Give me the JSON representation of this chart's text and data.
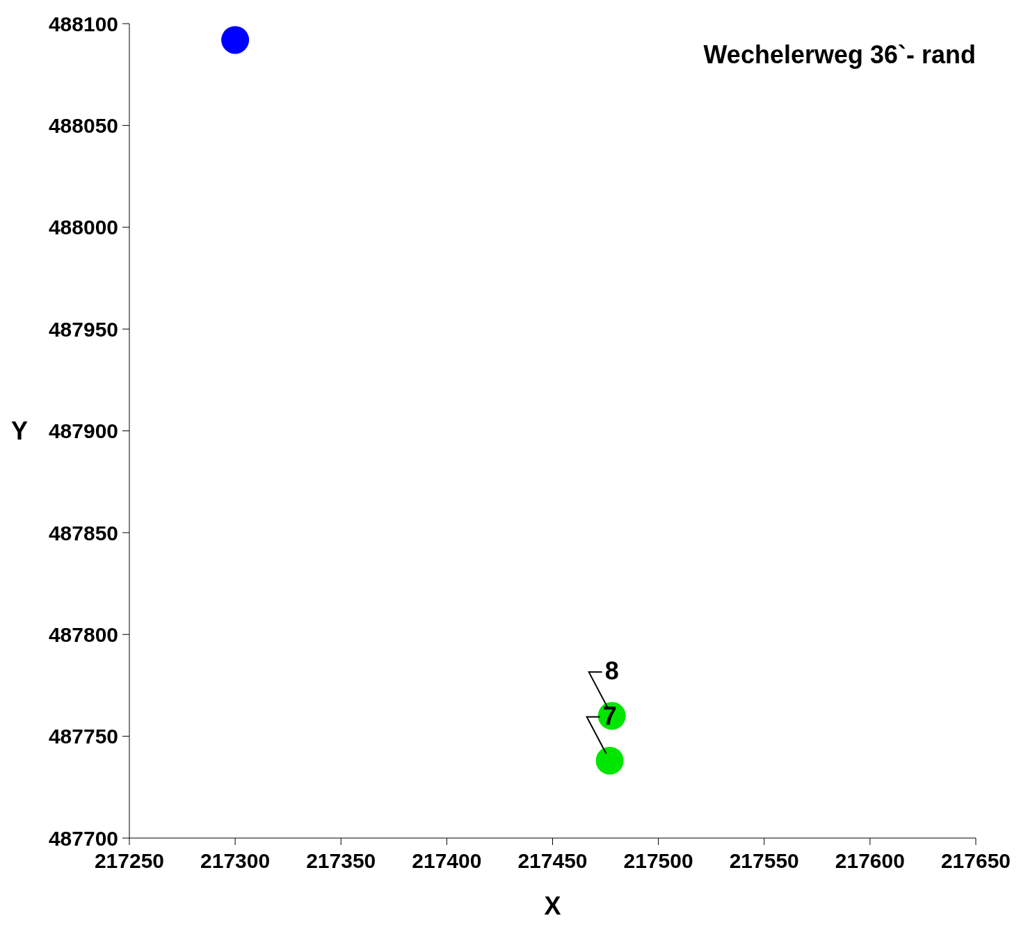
{
  "chart_data": {
    "type": "scatter",
    "title": "Wechelerweg 36`- rand",
    "xlabel": "X",
    "ylabel": "Y",
    "series": [
      {
        "color": "#0000ff",
        "x": [
          217300
        ],
        "values": [
          488092
        ]
      },
      {
        "color": "#00e600",
        "x": [
          217478,
          217477
        ],
        "values": [
          487760,
          487738
        ]
      }
    ],
    "annotations": [
      {
        "text": "8",
        "x": 217478,
        "y": 487760
      },
      {
        "text": "7",
        "x": 217477,
        "y": 487738
      }
    ],
    "xlim": [
      217250,
      217650
    ],
    "xticks": [
      217250,
      217300,
      217350,
      217400,
      217450,
      217500,
      217550,
      217600,
      217650
    ],
    "ylim": [
      487700,
      488100
    ],
    "yticks": [
      487700,
      487750,
      487800,
      487850,
      487900,
      487950,
      488000,
      488050,
      488100
    ],
    "marker": "circle",
    "grid": false,
    "legend": false
  }
}
